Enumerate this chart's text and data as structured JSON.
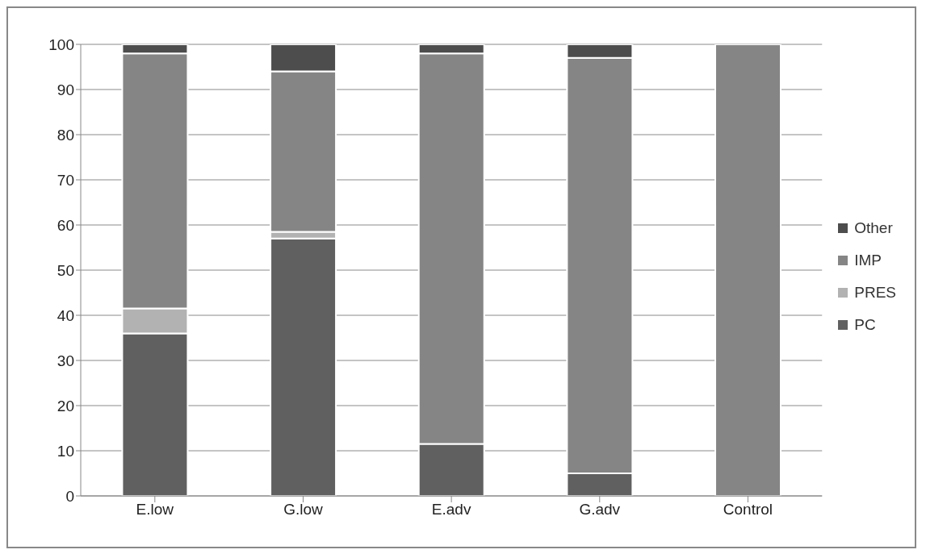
{
  "chart_data": {
    "type": "bar",
    "stacked": true,
    "categories": [
      "E.low",
      "G.low",
      "E.adv",
      "G.adv",
      "Control"
    ],
    "series": [
      {
        "name": "PC",
        "color": "#606060",
        "values": [
          36,
          57,
          11.5,
          5,
          0
        ]
      },
      {
        "name": "PRES",
        "color": "#b2b2b2",
        "values": [
          5.5,
          1.5,
          0,
          0,
          0
        ]
      },
      {
        "name": "IMP",
        "color": "#858585",
        "values": [
          56.5,
          35.5,
          86.5,
          92,
          100
        ]
      },
      {
        "name": "Other",
        "color": "#4d4d4d",
        "values": [
          2,
          6,
          2,
          3,
          0
        ]
      }
    ],
    "ylim": [
      0,
      100
    ],
    "yticks": [
      0,
      10,
      20,
      30,
      40,
      50,
      60,
      70,
      80,
      90,
      100
    ],
    "grid": "y",
    "legend": "right"
  }
}
